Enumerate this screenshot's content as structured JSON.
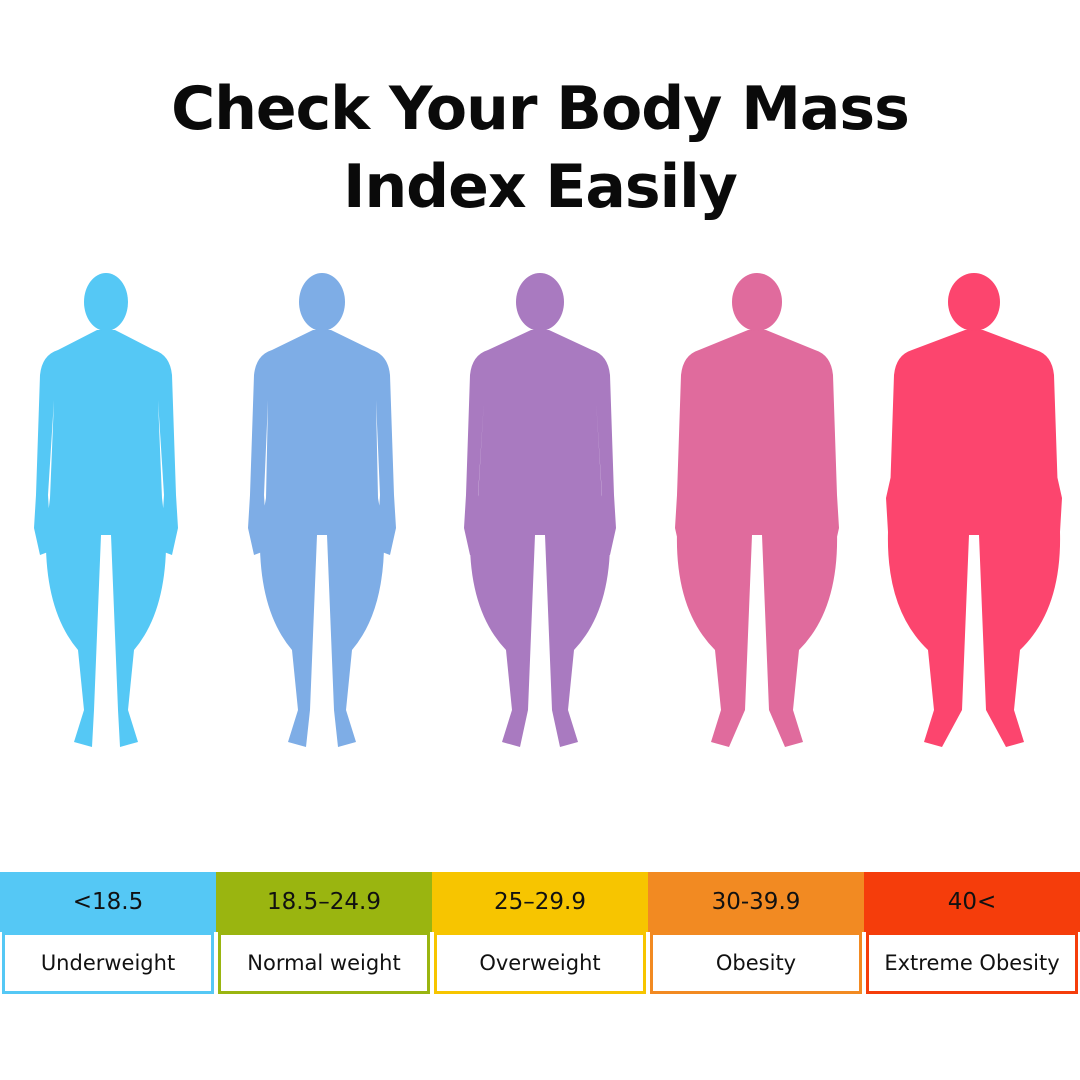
{
  "title": {
    "line1": "Check Your Body Mass",
    "line2": "Index Easily"
  },
  "categories": [
    {
      "range": "<18.5",
      "label": "Underweight",
      "color": "#55c8f5",
      "figure_color": "#55c8f5",
      "figure": "thin-body-silhouette-icon"
    },
    {
      "range": "18.5–24.9",
      "label": "Normal weight",
      "color": "#9ab510",
      "figure_color": "#7eade6",
      "figure": "normal-body-silhouette-icon"
    },
    {
      "range": "25–29.9",
      "label": "Overweight",
      "color": "#f7c500",
      "figure_color": "#a97ac0",
      "figure": "overweight-body-silhouette-icon"
    },
    {
      "range": "30-39.9",
      "label": "Obesity",
      "color": "#f28a22",
      "figure_color": "#e06b9d",
      "figure": "obese-body-silhouette-icon"
    },
    {
      "range": "40<",
      "label": "Extreme Obesity",
      "color": "#f53d0b",
      "figure_color": "#fc456e",
      "figure": "extreme-obese-body-silhouette-icon"
    }
  ]
}
